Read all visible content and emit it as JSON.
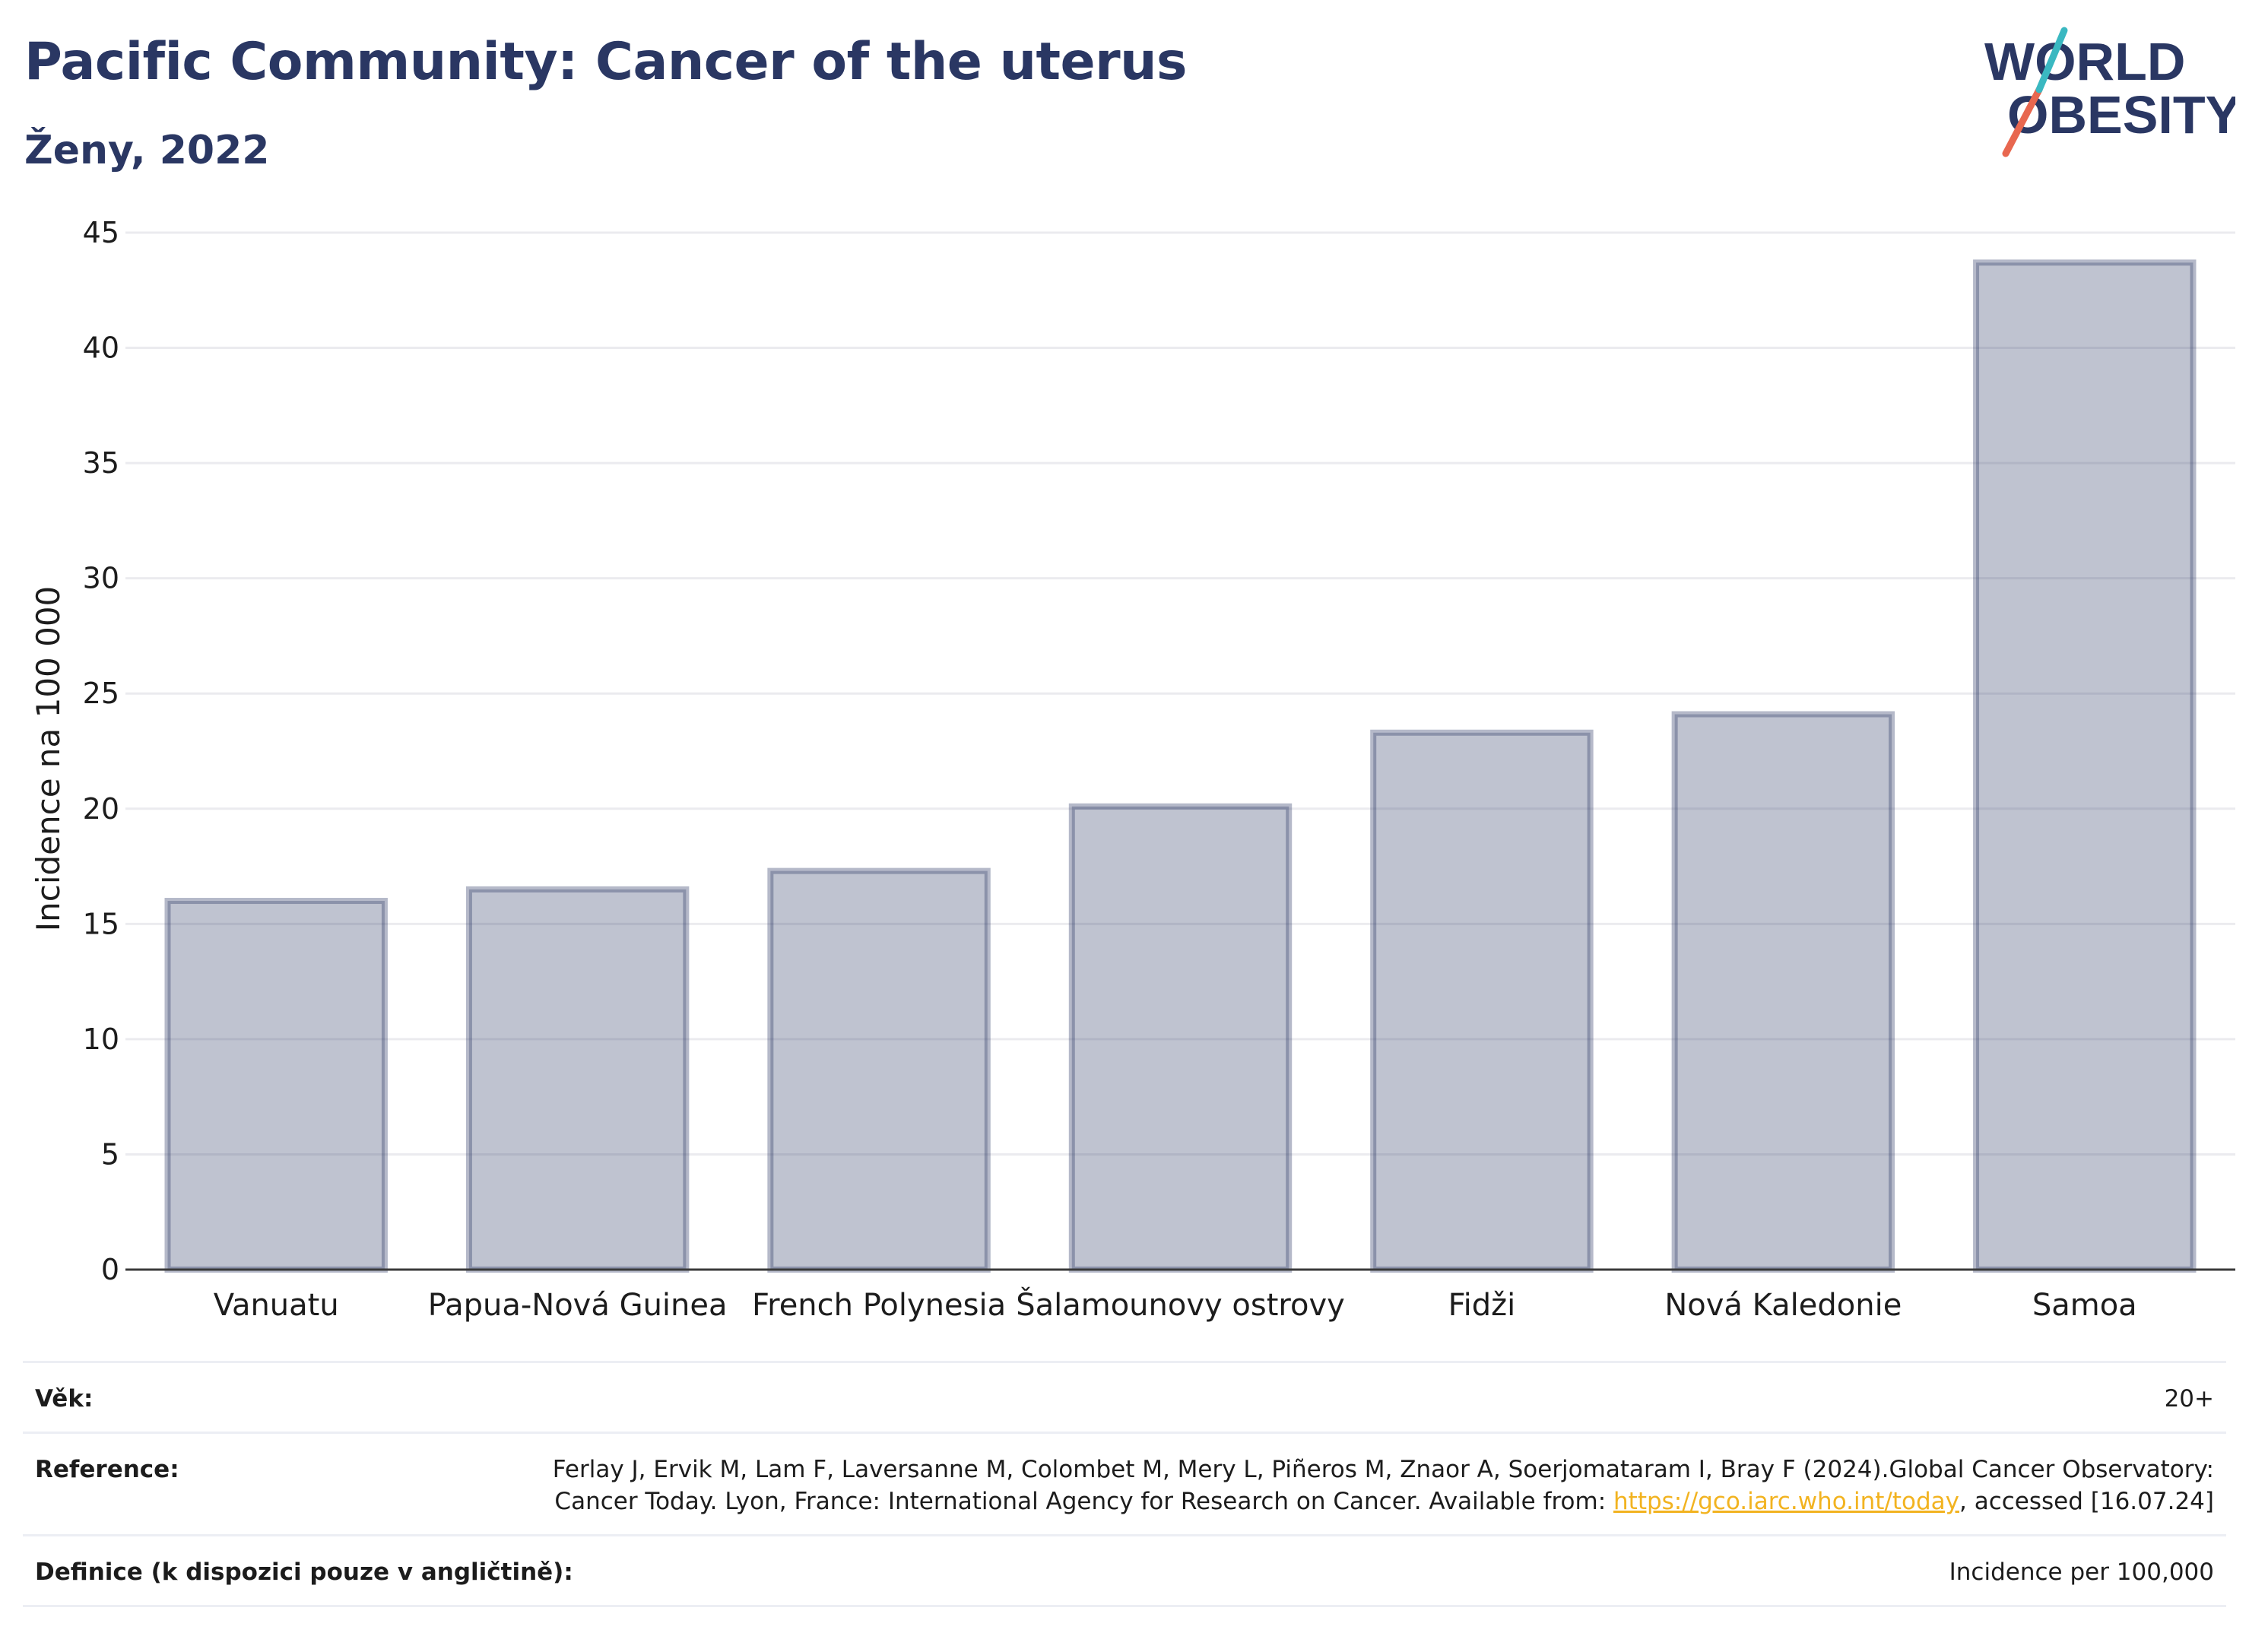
{
  "header": {
    "title": "Pacific Community: Cancer of the uterus",
    "subtitle": "Ženy, 2022"
  },
  "logo": {
    "line1": "WORLD",
    "line2": "OBESITY",
    "colors": {
      "navy": "#2a3763",
      "teal": "#3ab8c1",
      "coral": "#e8674f"
    }
  },
  "chart_data": {
    "type": "bar",
    "categories": [
      "Vanuatu",
      "Papua-Nová Guinea",
      "French Polynesia",
      "Šalamounovy ostrovy",
      "Fidži",
      "Nová Kaledonie",
      "Samoa"
    ],
    "values": [
      16.0,
      16.5,
      17.3,
      20.1,
      23.3,
      24.1,
      43.7
    ],
    "ylabel": "Incidence na 100 000",
    "ylim": [
      0,
      45
    ],
    "yticks": [
      0,
      5,
      10,
      15,
      20,
      25,
      30,
      35,
      40,
      45
    ],
    "grid": true,
    "bar_color": "#2a3763",
    "bar_opacity": 0.3
  },
  "meta": {
    "age_label": "Věk:",
    "age_value": "20+",
    "reference_label": "Reference:",
    "reference_text_before": "Ferlay J, Ervik M, Lam F, Laversanne M, Colombet M, Mery L, Piñeros M, Znaor A, Soerjomataram I, Bray F (2024).Global Cancer Observatory: Cancer Today. Lyon, France: International Agency for Research on Cancer. Available from: ",
    "reference_link": "https://gco.iarc.who.int/today",
    "reference_text_after": ", accessed [16.07.24]",
    "definition_label": "Definice (k dispozici pouze v angličtině):",
    "definition_value": "Incidence per 100,000"
  }
}
